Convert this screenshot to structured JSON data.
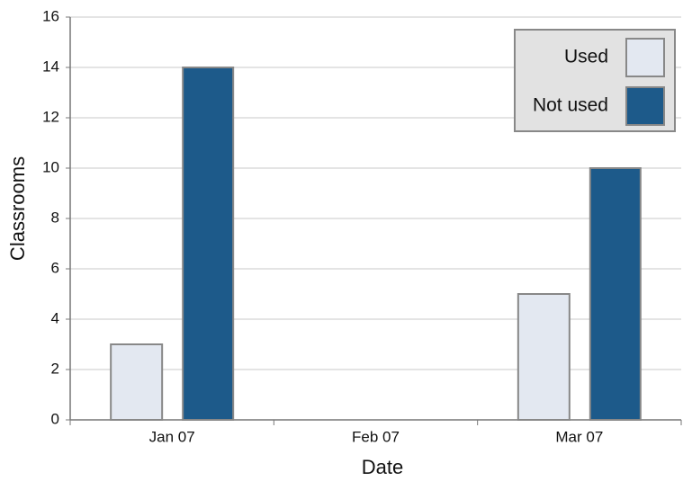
{
  "chart_data": {
    "type": "bar",
    "x_label": "Date",
    "y_label": "Classrooms",
    "categories": [
      "Jan 07",
      "Feb 07",
      "Mar 07"
    ],
    "series": [
      {
        "name": "Used",
        "color": "#e3e8f1",
        "values": [
          3,
          0,
          5
        ]
      },
      {
        "name": "Not used",
        "color": "#1d5a8a",
        "values": [
          14,
          0,
          10
        ]
      }
    ],
    "ylim": [
      0,
      16
    ],
    "yticks": [
      0,
      2,
      4,
      6,
      8,
      10,
      12,
      14,
      16
    ],
    "grid": true,
    "legend": "upper right"
  }
}
